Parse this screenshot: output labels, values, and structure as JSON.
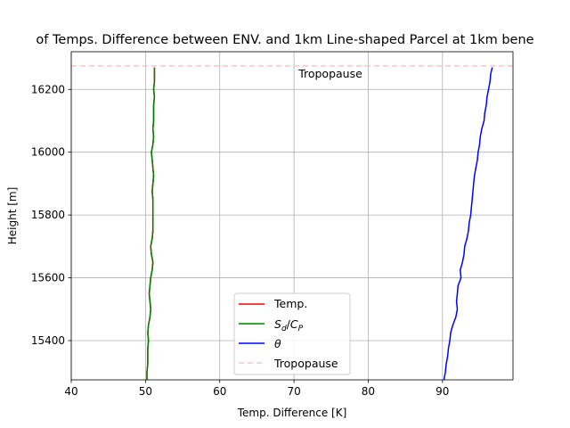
{
  "chart_data": {
    "type": "line",
    "title": "of Temps. Difference between ENV. and 1km Line-shaped Parcel at 1km bene",
    "xlabel": "Temp. Difference [K]",
    "ylabel": "Height [m]",
    "xlim": [
      40,
      99.5
    ],
    "ylim": [
      15275,
      16320
    ],
    "xticks": [
      40,
      50,
      60,
      70,
      80,
      90
    ],
    "yticks": [
      15400,
      15600,
      15800,
      16000,
      16200
    ],
    "grid": true,
    "legend_position": "lower-center",
    "y": [
      15275,
      15300,
      15325,
      15350,
      15375,
      15400,
      15425,
      15450,
      15475,
      15500,
      15525,
      15550,
      15575,
      15600,
      15625,
      15650,
      15675,
      15700,
      15725,
      15750,
      15775,
      15800,
      15825,
      15850,
      15875,
      15900,
      15925,
      15950,
      15975,
      16000,
      16025,
      16050,
      16075,
      16100,
      16125,
      16150,
      16175,
      16200,
      16225,
      16250,
      16270
    ],
    "series": [
      {
        "name": "Temp.",
        "color": "#ff0000",
        "values": [
          50.2,
          50.2,
          50.3,
          50.3,
          50.3,
          50.4,
          50.3,
          50.4,
          50.6,
          50.7,
          50.6,
          50.5,
          50.6,
          50.7,
          50.9,
          51.0,
          50.8,
          50.7,
          50.9,
          51.0,
          51.0,
          51.0,
          51.0,
          51.0,
          50.9,
          51.0,
          51.1,
          51.0,
          50.9,
          50.8,
          51.0,
          51.1,
          51.0,
          51.1,
          51.1,
          51.1,
          51.2,
          51.1,
          51.2,
          51.2,
          51.2
        ]
      },
      {
        "name": "S_d/C_P",
        "color": "#008000",
        "values": [
          50.2,
          50.2,
          50.3,
          50.3,
          50.3,
          50.4,
          50.3,
          50.4,
          50.6,
          50.7,
          50.6,
          50.5,
          50.6,
          50.7,
          50.9,
          51.0,
          50.8,
          50.7,
          50.9,
          51.0,
          51.0,
          51.0,
          51.0,
          51.0,
          50.9,
          51.0,
          51.1,
          51.0,
          50.9,
          50.8,
          51.0,
          51.1,
          51.0,
          51.1,
          51.1,
          51.1,
          51.2,
          51.1,
          51.2,
          51.2,
          51.2
        ]
      },
      {
        "name": "θ",
        "color": "#0000ff",
        "values": [
          90.2,
          90.4,
          90.5,
          90.7,
          90.8,
          91.0,
          91.1,
          91.4,
          91.8,
          92.0,
          91.9,
          92.0,
          92.1,
          92.5,
          92.4,
          92.7,
          92.9,
          93.0,
          93.3,
          93.5,
          93.6,
          93.8,
          93.9,
          94.0,
          94.1,
          94.2,
          94.3,
          94.5,
          94.7,
          94.8,
          95.0,
          95.1,
          95.3,
          95.6,
          95.7,
          95.9,
          96.0,
          96.2,
          96.4,
          96.5,
          96.7
        ]
      }
    ],
    "reference_line": {
      "name": "Tropopause",
      "y": 16275,
      "color": "#ffc0cb",
      "label": "Tropopause"
    }
  }
}
